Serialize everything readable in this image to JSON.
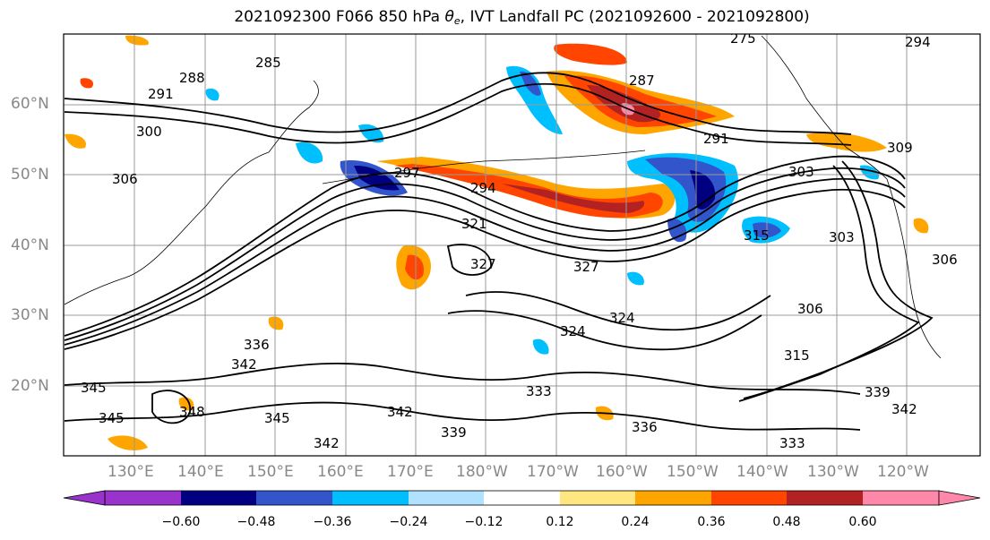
{
  "title": {
    "prefix": "2021092300 F066 850 hPa",
    "theta": "θ",
    "theta_sub": "e",
    "suffix": ", IVT Landfall PC (2021092600 - 2021092800)"
  },
  "lat_labels": [
    "60°N",
    "50°N",
    "40°N",
    "30°N",
    "20°N"
  ],
  "lon_labels": [
    "130°E",
    "140°E",
    "150°E",
    "160°E",
    "170°E",
    "180°W",
    "170°W",
    "160°W",
    "150°W",
    "140°W",
    "130°W",
    "120°W"
  ],
  "contour_labels": [
    "275",
    "294",
    "288",
    "285",
    "291",
    "287",
    "300",
    "291",
    "303",
    "309",
    "306",
    "297",
    "294",
    "321",
    "315",
    "327",
    "303",
    "306",
    "327",
    "324",
    "324",
    "306",
    "315",
    "336",
    "342",
    "345",
    "348",
    "345",
    "342",
    "342",
    "339",
    "336",
    "333",
    "339",
    "342",
    "333",
    "345"
  ],
  "colorbar": {
    "colors": [
      "#9933cc",
      "#000080",
      "#3355cc",
      "#00bfff",
      "#b0e2ff",
      "#ffffff",
      "#ffe680",
      "#ffa500",
      "#ff4500",
      "#b22222",
      "#ff88aa"
    ],
    "tick_labels": [
      "−0.60",
      "−0.48",
      "−0.36",
      "−0.24",
      "−0.12",
      "0.12",
      "0.24",
      "0.36",
      "0.48",
      "0.60"
    ]
  },
  "shading_colors": {
    "neg_strong": "#000080",
    "neg_mid": "#3355cc",
    "neg_light": "#00bfff",
    "neg_faint": "#b0e2ff",
    "pos_faint": "#ffe680",
    "pos_mid": "#ffa500",
    "pos_strong": "#ff4500",
    "pos_max": "#b22222",
    "pos_extreme": "#ff88aa"
  }
}
